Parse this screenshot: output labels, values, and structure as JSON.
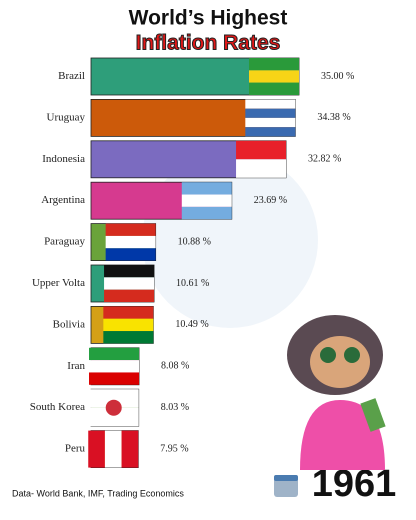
{
  "chart_data": {
    "type": "bar",
    "orientation": "horizontal",
    "title": "World’s Highest",
    "subtitle": "Inflation Rates",
    "categories": [
      "Brazil",
      "Uruguay",
      "Indonesia",
      "Argentina",
      "Paraguay",
      "Upper Volta",
      "Bolivia",
      "Iran",
      "South Korea",
      "Peru"
    ],
    "values": [
      35.0,
      34.38,
      32.82,
      23.69,
      10.88,
      10.61,
      10.49,
      8.08,
      8.03,
      7.95
    ],
    "value_labels": [
      "35.00 %",
      "34.38 %",
      "32.82 %",
      "23.69 %",
      "10.88 %",
      "10.61 %",
      "10.49 %",
      "8.08 %",
      "8.03 %",
      "7.95 %"
    ],
    "colors": [
      "#2e9e7a",
      "#cc5a0a",
      "#7b6bc0",
      "#d63a8f",
      "#6aa33a",
      "#2e9e7a",
      "#d4a017",
      "#d63a8f",
      "#6aa33a",
      "#d4a017"
    ],
    "source": "Data- World Bank, IMF, Trading Economics",
    "year": "1961"
  }
}
